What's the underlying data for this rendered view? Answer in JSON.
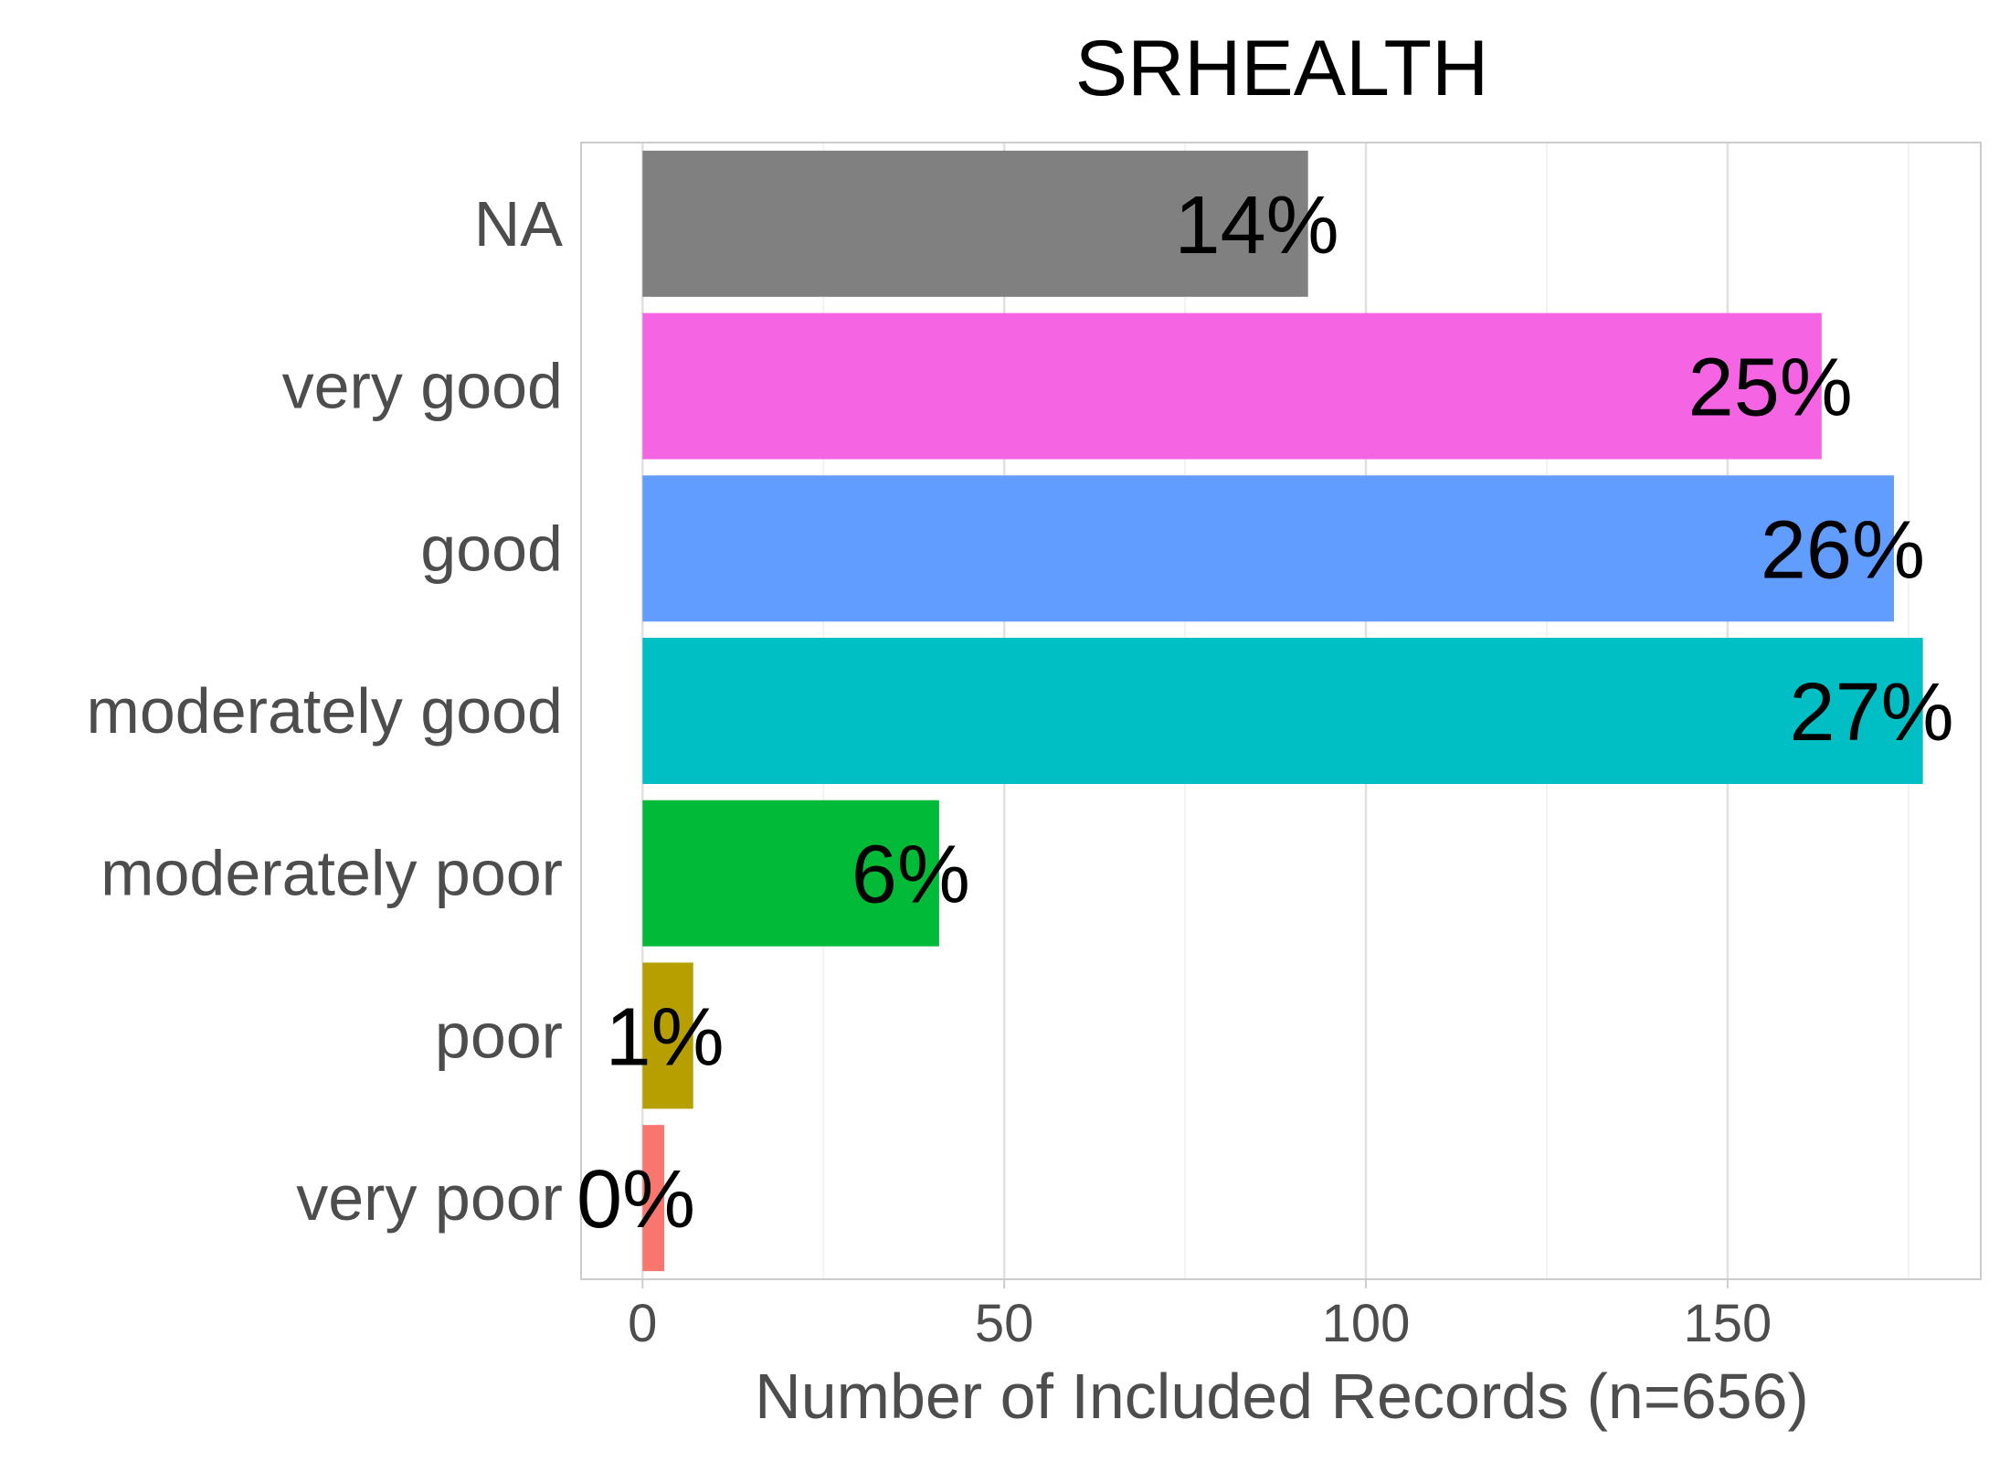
{
  "chart_data": {
    "type": "bar",
    "orientation": "horizontal",
    "title": "SRHEALTH",
    "xlabel": "Number of Included Records (n=656)",
    "ylabel": "",
    "xlim": [
      -8.5,
      185
    ],
    "xticks": [
      0,
      50,
      100,
      150
    ],
    "grid": true,
    "legend": "none",
    "categories": [
      "NA",
      "very good",
      "good",
      "moderately good",
      "moderately poor",
      "poor",
      "very poor"
    ],
    "values": [
      92,
      163,
      173,
      177,
      41,
      7,
      3
    ],
    "labels": [
      "14%",
      "25%",
      "26%",
      "27%",
      "6%",
      "1%",
      "0%"
    ],
    "colors": [
      "#808080",
      "#f564e3",
      "#619cff",
      "#00bfc4",
      "#00ba38",
      "#b79f00",
      "#f8766d"
    ]
  }
}
